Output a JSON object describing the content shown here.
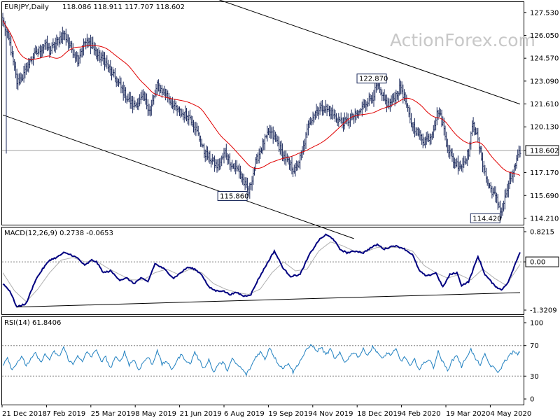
{
  "chart_data": [
    {
      "type": "candlestick",
      "title": "EURJPY,Daily",
      "ohlc_label": "118.086 118.911 117.707 118.602",
      "watermark": "ActionForex.com",
      "ylim": [
        113.8,
        128.2
      ],
      "y_ticks": [
        "127.530",
        "126.050",
        "124.570",
        "123.090",
        "121.610",
        "120.130",
        "117.170",
        "115.690",
        "114.210"
      ],
      "last_price": "118.602",
      "x_dates": [
        "21 Dec 2018",
        "7 Feb 2019",
        "25 Mar 2019",
        "8 May 2019",
        "21 Jun 2019",
        "6 Aug 2019",
        "19 Sep 2019",
        "4 Nov 2019",
        "18 Dec 2019",
        "4 Feb 2020",
        "19 Mar 2020",
        "4 May 2020"
      ],
      "close_keypoints": [
        [
          0,
          127.0
        ],
        [
          6,
          125.5
        ],
        [
          12,
          123.0
        ],
        [
          18,
          123.5
        ],
        [
          24,
          124.5
        ],
        [
          30,
          125.0
        ],
        [
          36,
          125.5
        ],
        [
          40,
          125.0
        ],
        [
          46,
          125.6
        ],
        [
          52,
          126.2
        ],
        [
          58,
          125.3
        ],
        [
          64,
          124.5
        ],
        [
          70,
          125.6
        ],
        [
          76,
          125.5
        ],
        [
          80,
          124.8
        ],
        [
          86,
          124.5
        ],
        [
          94,
          123.5
        ],
        [
          100,
          122.8
        ],
        [
          106,
          122.0
        ],
        [
          112,
          121.5
        ],
        [
          120,
          122.0
        ],
        [
          126,
          121.2
        ],
        [
          132,
          122.8
        ],
        [
          140,
          122.2
        ],
        [
          146,
          121.5
        ],
        [
          152,
          121.0
        ],
        [
          160,
          120.8
        ],
        [
          166,
          119.8
        ],
        [
          172,
          118.5
        ],
        [
          178,
          118.0
        ],
        [
          184,
          117.5
        ],
        [
          190,
          118.5
        ],
        [
          196,
          117.6
        ],
        [
          202,
          117.3
        ],
        [
          206,
          116.5
        ],
        [
          210,
          115.9
        ],
        [
          216,
          117.8
        ],
        [
          222,
          119.0
        ],
        [
          228,
          119.8
        ],
        [
          234,
          119.2
        ],
        [
          240,
          118.2
        ],
        [
          246,
          117.6
        ],
        [
          250,
          117.3
        ],
        [
          256,
          118.5
        ],
        [
          262,
          120.5
        ],
        [
          268,
          121.2
        ],
        [
          274,
          121.4
        ],
        [
          280,
          121.1
        ],
        [
          286,
          120.6
        ],
        [
          292,
          120.4
        ],
        [
          298,
          120.7
        ],
        [
          304,
          121.0
        ],
        [
          310,
          121.7
        ],
        [
          316,
          122.1
        ],
        [
          320,
          122.8
        ],
        [
          324,
          122.0
        ],
        [
          330,
          121.5
        ],
        [
          336,
          122.2
        ],
        [
          340,
          122.7
        ],
        [
          344,
          121.8
        ],
        [
          348,
          120.5
        ],
        [
          354,
          119.8
        ],
        [
          360,
          119.2
        ],
        [
          366,
          119.6
        ],
        [
          372,
          121.2
        ],
        [
          376,
          120.3
        ],
        [
          380,
          118.8
        ],
        [
          386,
          117.8
        ],
        [
          392,
          117.6
        ],
        [
          398,
          118.5
        ],
        [
          402,
          120.5
        ],
        [
          406,
          119.2
        ],
        [
          410,
          117.8
        ],
        [
          414,
          116.5
        ],
        [
          418,
          116.0
        ],
        [
          422,
          115.4
        ],
        [
          426,
          114.6
        ],
        [
          430,
          115.8
        ],
        [
          434,
          116.8
        ],
        [
          438,
          117.6
        ],
        [
          442,
          118.6
        ]
      ],
      "swing_labels": [
        {
          "text": "122.870",
          "bar": 320,
          "value": 122.87
        },
        {
          "text": "115.860",
          "bar": 210,
          "value": 115.86
        },
        {
          "text": "114.420",
          "bar": 426,
          "value": 114.42
        }
      ],
      "channel_lines": [
        {
          "points": [
            [
              0,
              120.9
            ],
            [
              300,
              112.9
            ]
          ]
        },
        {
          "points": [
            [
              0,
              133.2
            ],
            [
              442,
              121.6
            ]
          ]
        }
      ],
      "horizontal_line": 118.602
    },
    {
      "type": "line",
      "title": "MACD(12,26,9) 0.2738 -0.0653",
      "ylim": [
        -1.45,
        0.95
      ],
      "y_ticks": [
        "0.8215",
        "0.00",
        "-1.3209"
      ],
      "zero_label": "0.00",
      "macd_keypoints": [
        [
          0,
          -0.6
        ],
        [
          6,
          -0.8
        ],
        [
          12,
          -1.25
        ],
        [
          20,
          -1.15
        ],
        [
          28,
          -0.5
        ],
        [
          34,
          -0.2
        ],
        [
          40,
          0.05
        ],
        [
          46,
          0.12
        ],
        [
          52,
          0.25
        ],
        [
          58,
          0.2
        ],
        [
          64,
          0.1
        ],
        [
          70,
          -0.1
        ],
        [
          76,
          0.05
        ],
        [
          80,
          0.0
        ],
        [
          86,
          -0.3
        ],
        [
          92,
          -0.25
        ],
        [
          100,
          -0.5
        ],
        [
          106,
          -0.45
        ],
        [
          112,
          -0.6
        ],
        [
          118,
          -0.45
        ],
        [
          124,
          -0.55
        ],
        [
          130,
          -0.05
        ],
        [
          138,
          -0.2
        ],
        [
          146,
          -0.45
        ],
        [
          152,
          -0.3
        ],
        [
          158,
          -0.15
        ],
        [
          164,
          -0.2
        ],
        [
          170,
          -0.35
        ],
        [
          176,
          -0.7
        ],
        [
          182,
          -0.8
        ],
        [
          188,
          -0.8
        ],
        [
          194,
          -0.9
        ],
        [
          200,
          -0.85
        ],
        [
          206,
          -0.95
        ],
        [
          212,
          -0.9
        ],
        [
          218,
          -0.5
        ],
        [
          224,
          -0.15
        ],
        [
          232,
          0.3
        ],
        [
          240,
          -0.2
        ],
        [
          246,
          -0.4
        ],
        [
          254,
          -0.35
        ],
        [
          262,
          0.2
        ],
        [
          270,
          0.6
        ],
        [
          276,
          0.75
        ],
        [
          282,
          0.65
        ],
        [
          288,
          0.35
        ],
        [
          294,
          0.25
        ],
        [
          302,
          0.3
        ],
        [
          308,
          0.25
        ],
        [
          314,
          0.38
        ],
        [
          320,
          0.48
        ],
        [
          326,
          0.35
        ],
        [
          334,
          0.45
        ],
        [
          342,
          0.38
        ],
        [
          350,
          0.2
        ],
        [
          356,
          -0.25
        ],
        [
          362,
          -0.4
        ],
        [
          370,
          -0.3
        ],
        [
          376,
          -0.7
        ],
        [
          382,
          -0.35
        ],
        [
          388,
          -0.3
        ],
        [
          392,
          -0.65
        ],
        [
          398,
          -0.55
        ],
        [
          406,
          0.15
        ],
        [
          412,
          -0.35
        ],
        [
          420,
          -0.65
        ],
        [
          426,
          -0.78
        ],
        [
          432,
          -0.55
        ],
        [
          438,
          -0.05
        ],
        [
          442,
          0.27
        ]
      ],
      "signal_keypoints": [
        [
          0,
          -0.3
        ],
        [
          10,
          -0.8
        ],
        [
          20,
          -1.1
        ],
        [
          30,
          -0.75
        ],
        [
          40,
          -0.3
        ],
        [
          50,
          0.05
        ],
        [
          60,
          0.12
        ],
        [
          70,
          0.0
        ],
        [
          80,
          0.02
        ],
        [
          90,
          -0.18
        ],
        [
          100,
          -0.35
        ],
        [
          110,
          -0.5
        ],
        [
          120,
          -0.5
        ],
        [
          130,
          -0.3
        ],
        [
          140,
          -0.2
        ],
        [
          150,
          -0.35
        ],
        [
          160,
          -0.2
        ],
        [
          170,
          -0.3
        ],
        [
          180,
          -0.6
        ],
        [
          190,
          -0.75
        ],
        [
          200,
          -0.85
        ],
        [
          210,
          -0.9
        ],
        [
          220,
          -0.75
        ],
        [
          230,
          -0.3
        ],
        [
          240,
          0.0
        ],
        [
          250,
          -0.25
        ],
        [
          260,
          -0.2
        ],
        [
          270,
          0.3
        ],
        [
          280,
          0.55
        ],
        [
          290,
          0.45
        ],
        [
          300,
          0.3
        ],
        [
          310,
          0.28
        ],
        [
          320,
          0.4
        ],
        [
          330,
          0.4
        ],
        [
          340,
          0.4
        ],
        [
          350,
          0.3
        ],
        [
          360,
          -0.1
        ],
        [
          370,
          -0.3
        ],
        [
          380,
          -0.45
        ],
        [
          390,
          -0.35
        ],
        [
          400,
          -0.5
        ],
        [
          410,
          -0.2
        ],
        [
          420,
          -0.45
        ],
        [
          430,
          -0.65
        ],
        [
          442,
          -0.07
        ]
      ],
      "trendline": [
        [
          12,
          -1.25
        ],
        [
          442,
          -0.85
        ]
      ]
    },
    {
      "type": "line",
      "title": "RSI(14) 61.8406",
      "ylim": [
        0,
        100
      ],
      "y_ticks": [
        "100",
        "70",
        "30",
        "0"
      ],
      "levels": [
        70,
        30
      ],
      "rsi_keypoints": [
        [
          0,
          45
        ],
        [
          4,
          55
        ],
        [
          8,
          38
        ],
        [
          12,
          48
        ],
        [
          16,
          55
        ],
        [
          20,
          44
        ],
        [
          24,
          52
        ],
        [
          28,
          60
        ],
        [
          32,
          48
        ],
        [
          36,
          58
        ],
        [
          40,
          52
        ],
        [
          44,
          62
        ],
        [
          48,
          55
        ],
        [
          52,
          68
        ],
        [
          56,
          52
        ],
        [
          60,
          45
        ],
        [
          64,
          58
        ],
        [
          68,
          48
        ],
        [
          72,
          62
        ],
        [
          76,
          55
        ],
        [
          80,
          66
        ],
        [
          84,
          48
        ],
        [
          88,
          55
        ],
        [
          92,
          40
        ],
        [
          96,
          55
        ],
        [
          100,
          48
        ],
        [
          104,
          62
        ],
        [
          108,
          45
        ],
        [
          112,
          52
        ],
        [
          116,
          38
        ],
        [
          120,
          48
        ],
        [
          124,
          55
        ],
        [
          128,
          45
        ],
        [
          132,
          65
        ],
        [
          136,
          45
        ],
        [
          140,
          50
        ],
        [
          144,
          38
        ],
        [
          148,
          48
        ],
        [
          152,
          58
        ],
        [
          156,
          52
        ],
        [
          160,
          45
        ],
        [
          164,
          62
        ],
        [
          168,
          50
        ],
        [
          172,
          40
        ],
        [
          176,
          52
        ],
        [
          180,
          35
        ],
        [
          184,
          45
        ],
        [
          188,
          48
        ],
        [
          192,
          38
        ],
        [
          196,
          52
        ],
        [
          200,
          45
        ],
        [
          204,
          40
        ],
        [
          208,
          32
        ],
        [
          212,
          42
        ],
        [
          216,
          55
        ],
        [
          220,
          62
        ],
        [
          224,
          52
        ],
        [
          228,
          68
        ],
        [
          232,
          55
        ],
        [
          236,
          45
        ],
        [
          240,
          40
        ],
        [
          244,
          48
        ],
        [
          248,
          35
        ],
        [
          252,
          45
        ],
        [
          256,
          55
        ],
        [
          260,
          65
        ],
        [
          264,
          72
        ],
        [
          268,
          62
        ],
        [
          272,
          68
        ],
        [
          276,
          58
        ],
        [
          280,
          65
        ],
        [
          284,
          52
        ],
        [
          288,
          60
        ],
        [
          292,
          48
        ],
        [
          296,
          55
        ],
        [
          300,
          62
        ],
        [
          304,
          55
        ],
        [
          308,
          65
        ],
        [
          312,
          58
        ],
        [
          316,
          68
        ],
        [
          320,
          62
        ],
        [
          324,
          52
        ],
        [
          328,
          60
        ],
        [
          332,
          58
        ],
        [
          336,
          65
        ],
        [
          340,
          50
        ],
        [
          344,
          55
        ],
        [
          348,
          42
        ],
        [
          352,
          52
        ],
        [
          356,
          38
        ],
        [
          360,
          48
        ],
        [
          364,
          52
        ],
        [
          368,
          42
        ],
        [
          372,
          62
        ],
        [
          376,
          48
        ],
        [
          380,
          38
        ],
        [
          384,
          50
        ],
        [
          388,
          58
        ],
        [
          392,
          42
        ],
        [
          396,
          55
        ],
        [
          400,
          65
        ],
        [
          404,
          52
        ],
        [
          408,
          45
        ],
        [
          412,
          58
        ],
        [
          416,
          45
        ],
        [
          420,
          40
        ],
        [
          424,
          35
        ],
        [
          428,
          48
        ],
        [
          432,
          55
        ],
        [
          436,
          62
        ],
        [
          440,
          58
        ],
        [
          442,
          62
        ]
      ]
    }
  ]
}
